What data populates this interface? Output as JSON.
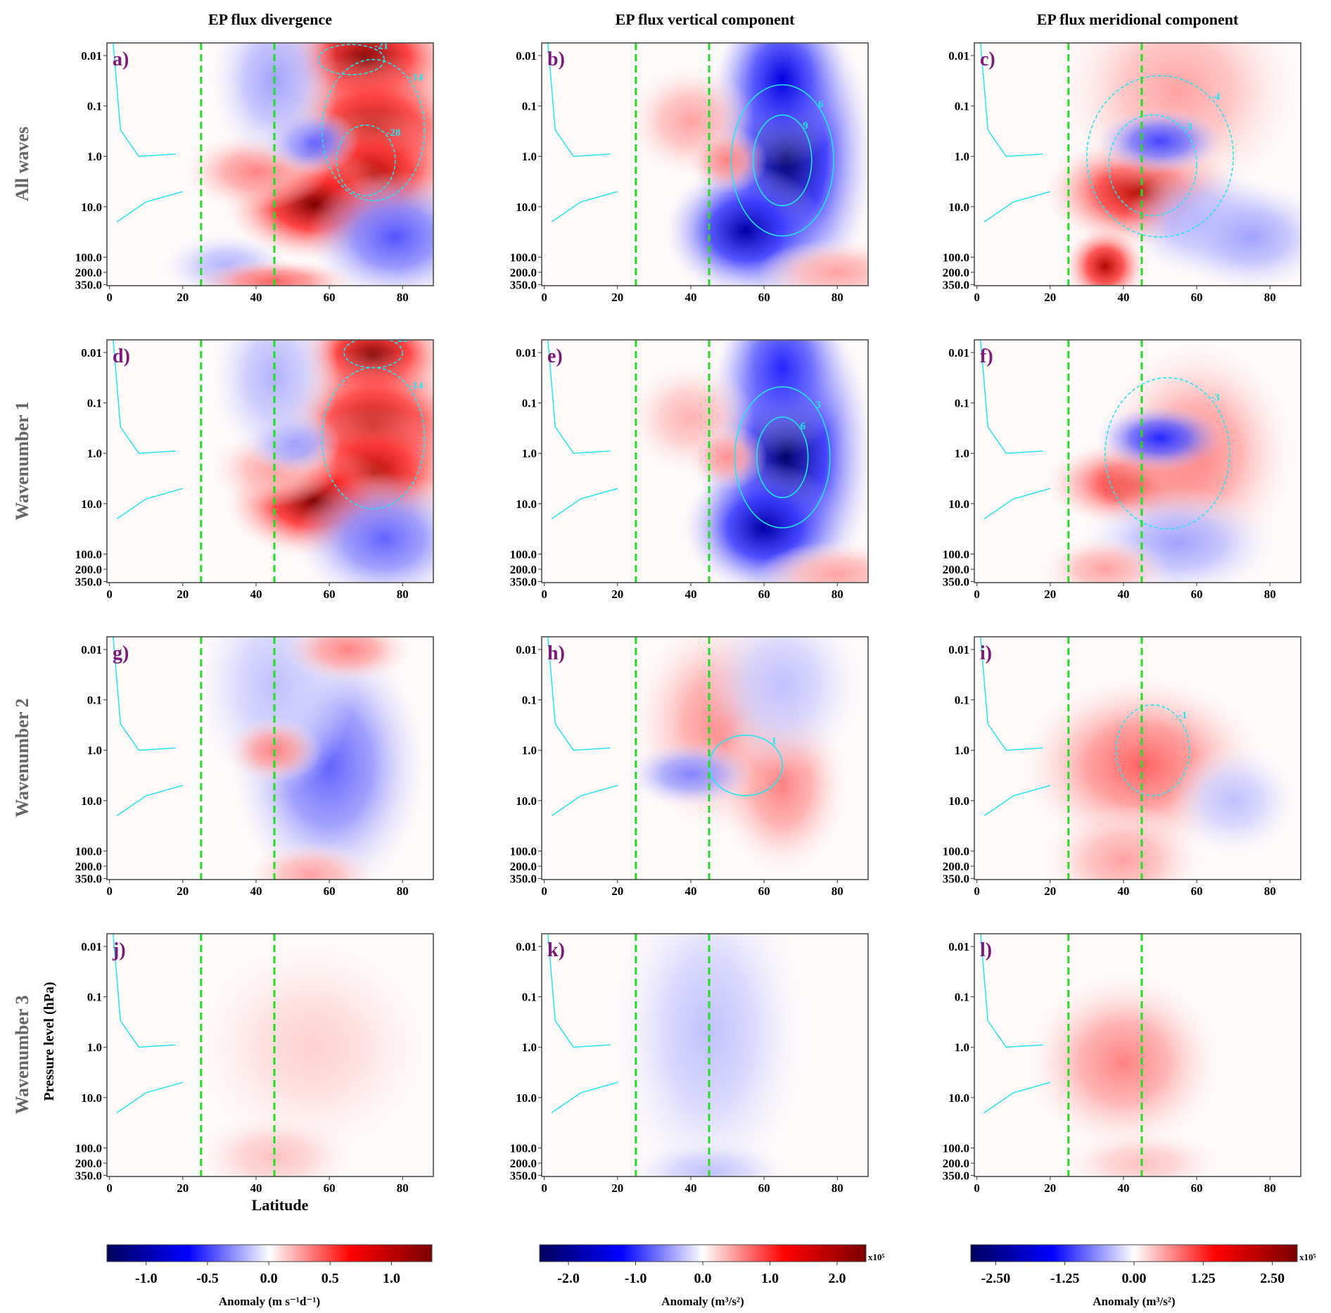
{
  "column_titles": [
    "EP flux divergence",
    "EP flux vertical component",
    "EP flux meridional component"
  ],
  "row_labels": [
    "All waves",
    "Wavenumber 1",
    "Wavenumber 2",
    "Wavenumber 3"
  ],
  "axis": {
    "xlabel": "Latitude",
    "ylabel": "Pressure level (hPa)",
    "x_ticks": [
      "0",
      "20",
      "40",
      "60",
      "80"
    ],
    "y_ticks": [
      "0.01",
      "0.1",
      "1.0",
      "10.0",
      "100.0",
      "200.0",
      "350.0"
    ],
    "reference_lines_latitude": [
      25,
      45
    ],
    "reference_line_color": "#22dd22",
    "contour_color": "#22e5f0",
    "panel_label_color": "#7b1a7b"
  },
  "colorbars": [
    {
      "ticks": [
        "-1.0",
        "-0.5",
        "0.0",
        "0.5",
        "1.0"
      ],
      "label": "Anomaly (m s⁻¹d⁻¹)",
      "scale": "",
      "range": [
        -1.32,
        1.33
      ]
    },
    {
      "ticks": [
        "-2.0",
        "-1.0",
        "0.0",
        "1.0",
        "2.0"
      ],
      "label": "Anomaly (m³/s²)",
      "scale": "x10⁵",
      "range": [
        -2.43,
        2.43
      ]
    },
    {
      "ticks": [
        "-2.50",
        "-1.25",
        "0.00",
        "1.25",
        "2.50"
      ],
      "label": "Anomaly (m³/s²)",
      "scale": "x10⁵",
      "range": [
        -2.95,
        2.95
      ]
    }
  ],
  "chart_data": {
    "type": "heatmap",
    "xlim": [
      0,
      88
    ],
    "ylim_hPa": [
      350,
      0.0056
    ],
    "y_scale": "log",
    "field_format": "anomaly centers: [latitude, pressure hPa, normalized anomaly, latitude spread deg, pressure spread decades]",
    "panels": [
      {
        "label": "a)",
        "centers": [
          [
            70,
            0.012,
            1,
            12,
            0.6
          ],
          [
            72,
            0.3,
            0.9,
            13,
            0.7
          ],
          [
            72,
            2.5,
            0.9,
            11,
            0.6
          ],
          [
            56,
            9,
            1,
            11,
            0.5
          ],
          [
            40,
            2,
            0.4,
            9,
            0.35
          ],
          [
            55,
            0.5,
            -0.55,
            6,
            0.3
          ],
          [
            45,
            0.03,
            -0.3,
            8,
            0.8
          ],
          [
            78,
            40,
            -0.55,
            11,
            0.6
          ],
          [
            32,
            150,
            -0.25,
            8,
            0.3
          ],
          [
            45,
            300,
            0.5,
            10,
            0.2
          ]
        ],
        "contours": [
          [
            72,
            0.3,
            14,
            1.4,
            "-14"
          ],
          [
            66,
            0.012,
            9,
            0.3,
            "-21"
          ],
          [
            70,
            1.2,
            8,
            0.7,
            "-28"
          ]
        ]
      },
      {
        "label": "b)",
        "centers": [
          [
            66,
            1,
            -1,
            11,
            1.4
          ],
          [
            55,
            30,
            -0.9,
            10,
            0.6
          ],
          [
            65,
            0.03,
            -0.8,
            8,
            0.8
          ],
          [
            40,
            0.2,
            0.3,
            8,
            0.5
          ],
          [
            50,
            1.2,
            0.4,
            5,
            0.3
          ],
          [
            80,
            200,
            0.3,
            10,
            0.3
          ]
        ],
        "contours": [
          [
            65,
            1.2,
            14,
            1.5,
            "6"
          ],
          [
            65,
            1.2,
            8,
            0.9,
            "9"
          ]
        ]
      },
      {
        "label": "c)",
        "centers": [
          [
            45,
            5,
            0.9,
            12,
            0.5
          ],
          [
            35,
            150,
            0.9,
            5,
            0.35
          ],
          [
            55,
            0.05,
            0.3,
            15,
            1
          ],
          [
            50,
            0.5,
            -0.6,
            8,
            0.3
          ],
          [
            62,
            20,
            -0.3,
            10,
            0.5
          ],
          [
            75,
            40,
            -0.3,
            10,
            0.5
          ]
        ],
        "contours": [
          [
            50,
            1,
            20,
            1.6,
            "-4"
          ],
          [
            48,
            1.5,
            12,
            1.0,
            "-3"
          ]
        ]
      },
      {
        "label": "d)",
        "centers": [
          [
            72,
            0.012,
            1,
            10,
            0.5
          ],
          [
            72,
            0.3,
            0.9,
            13,
            0.7
          ],
          [
            72,
            2.5,
            0.9,
            11,
            0.6
          ],
          [
            56,
            9,
            1,
            11,
            0.5
          ],
          [
            45,
            2,
            0.3,
            8,
            0.35
          ],
          [
            50,
            0.6,
            -0.4,
            6,
            0.3
          ],
          [
            45,
            0.03,
            -0.25,
            8,
            0.8
          ],
          [
            75,
            50,
            -0.5,
            11,
            0.6
          ]
        ],
        "contours": [
          [
            72,
            0.5,
            14,
            1.4,
            "-14"
          ],
          [
            72,
            0.01,
            8,
            0.3,
            "-21"
          ]
        ]
      },
      {
        "label": "e)",
        "centers": [
          [
            66,
            1,
            -1,
            11,
            1.4
          ],
          [
            60,
            30,
            -0.9,
            10,
            0.6
          ],
          [
            65,
            0.02,
            -0.7,
            8,
            0.8
          ],
          [
            40,
            0.2,
            0.25,
            8,
            0.5
          ],
          [
            50,
            1.2,
            0.35,
            5,
            0.3
          ],
          [
            80,
            250,
            0.3,
            10,
            0.3
          ]
        ],
        "contours": [
          [
            65,
            1.2,
            13,
            1.4,
            "3"
          ],
          [
            65,
            1.2,
            7,
            0.8,
            "6"
          ]
        ]
      },
      {
        "label": "f)",
        "centers": [
          [
            45,
            4,
            0.8,
            12,
            0.4
          ],
          [
            60,
            1,
            0.4,
            12,
            1
          ],
          [
            50,
            0.5,
            -0.7,
            8,
            0.3
          ],
          [
            55,
            60,
            -0.3,
            12,
            0.5
          ],
          [
            35,
            200,
            0.3,
            8,
            0.3
          ]
        ],
        "contours": [
          [
            52,
            1,
            17,
            1.5,
            "-3"
          ]
        ]
      },
      {
        "label": "g)",
        "centers": [
          [
            60,
            2,
            -0.5,
            12,
            1.2
          ],
          [
            45,
            0.05,
            -0.2,
            10,
            1
          ],
          [
            45,
            1,
            0.4,
            6,
            0.3
          ],
          [
            65,
            0.01,
            0.4,
            8,
            0.3
          ],
          [
            55,
            300,
            0.3,
            8,
            0.3
          ]
        ],
        "contours": []
      },
      {
        "label": "h)",
        "centers": [
          [
            50,
            0.3,
            0.4,
            12,
            1
          ],
          [
            65,
            5,
            0.4,
            8,
            0.8
          ],
          [
            40,
            3,
            -0.4,
            8,
            0.3
          ],
          [
            65,
            0.05,
            -0.2,
            10,
            0.8
          ]
        ],
        "contours": [
          [
            55,
            2,
            10,
            0.6,
            "1"
          ]
        ]
      },
      {
        "label": "i)",
        "centers": [
          [
            45,
            2,
            0.5,
            15,
            0.8
          ],
          [
            40,
            150,
            0.3,
            10,
            0.5
          ],
          [
            70,
            10,
            -0.2,
            8,
            0.5
          ]
        ],
        "contours": [
          [
            48,
            1,
            10,
            0.9,
            "-1"
          ]
        ]
      },
      {
        "label": "j)",
        "centers": [
          [
            55,
            1,
            0.15,
            15,
            1
          ],
          [
            45,
            150,
            0.2,
            10,
            0.4
          ]
        ],
        "contours": []
      },
      {
        "label": "k)",
        "centers": [
          [
            45,
            0.5,
            -0.2,
            12,
            1.5
          ],
          [
            45,
            300,
            -0.2,
            10,
            0.3
          ]
        ],
        "contours": []
      },
      {
        "label": "l)",
        "centers": [
          [
            40,
            2,
            0.4,
            12,
            0.8
          ],
          [
            45,
            200,
            0.2,
            10,
            0.3
          ]
        ],
        "contours": []
      }
    ]
  }
}
